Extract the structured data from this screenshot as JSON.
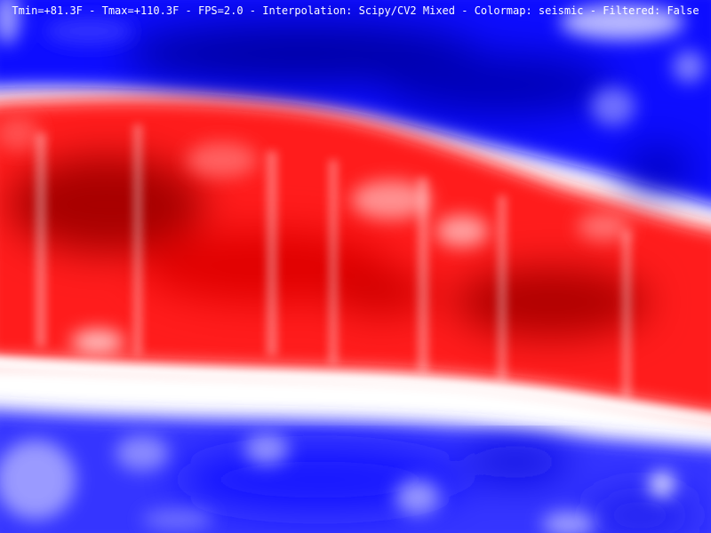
{
  "status": {
    "tmin": "Tmin=+81.3F",
    "tmax": "Tmax=+110.3F",
    "fps": "FPS=2.0",
    "interpolation": "Interpolation: Scipy/CV2 Mixed",
    "colormap": "Colormap: seismic",
    "filtered": "Filtered: False",
    "separator": " - "
  },
  "colormap": {
    "name": "seismic",
    "cold_dark": "#0000a0",
    "cold": "#0000ff",
    "neutral": "#ffffff",
    "hot": "#ff0000",
    "hot_dark": "#9a0000"
  }
}
